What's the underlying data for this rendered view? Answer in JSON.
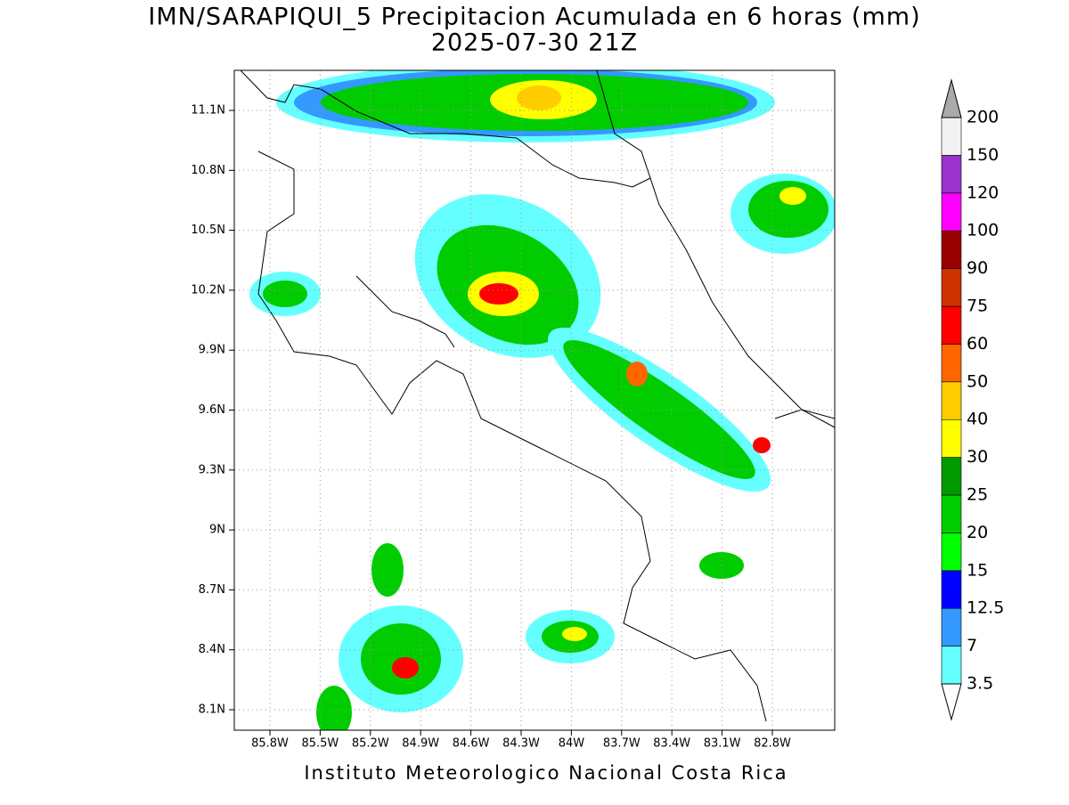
{
  "header": {
    "title": "IMN/SARAPIQUI_5 Precipitacion Acumulada en 6 horas (mm)",
    "subtitle": "2025-07-30 21Z"
  },
  "map": {
    "lat_ticks": [
      "11.1N",
      "10.8N",
      "10.5N",
      "10.2N",
      "9.9N",
      "9.6N",
      "9.3N",
      "9N",
      "8.7N",
      "8.4N",
      "8.1N"
    ],
    "lon_ticks": [
      "85.8W",
      "85.5W",
      "85.2W",
      "84.9W",
      "84.6W",
      "84.3W",
      "84W",
      "83.7W",
      "83.4W",
      "83.1W",
      "82.8W"
    ]
  },
  "legend": {
    "levels": [
      "3.5",
      "7",
      "12.5",
      "15",
      "20",
      "25",
      "30",
      "40",
      "50",
      "60",
      "75",
      "90",
      "100",
      "120",
      "150",
      "200"
    ],
    "colors": [
      "#66ffff",
      "#3399ff",
      "#0000ff",
      "#00ff00",
      "#00cc00",
      "#009900",
      "#ffff00",
      "#ffcc00",
      "#ff6600",
      "#ff0000",
      "#cc3300",
      "#990000",
      "#ff00ff",
      "#9933cc",
      "#f2f2f2"
    ],
    "under_color": "#ffffff",
    "over_color": "#aaaaaa"
  },
  "footer": "Instituto Meteorologico Nacional Costa Rica"
}
